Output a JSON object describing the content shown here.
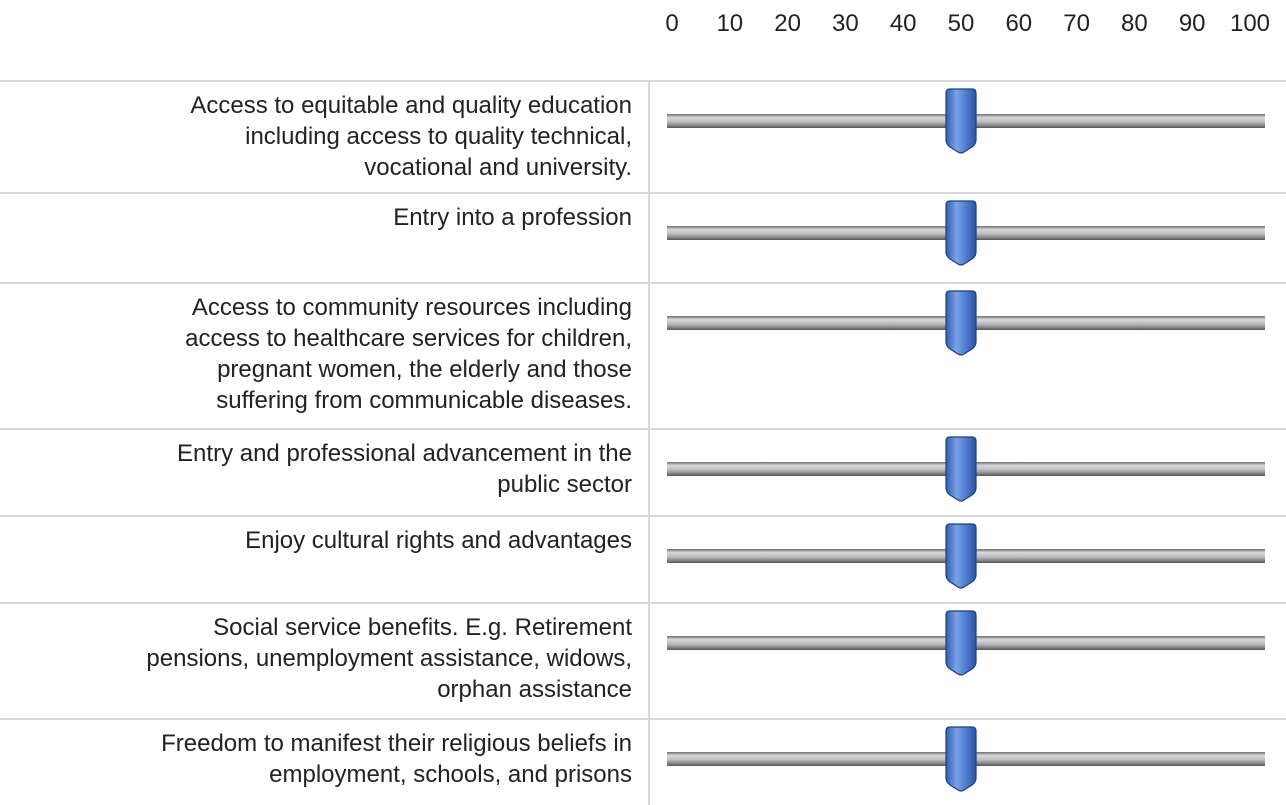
{
  "scale": {
    "ticks": [
      0,
      10,
      20,
      30,
      40,
      50,
      60,
      70,
      80,
      90,
      100
    ]
  },
  "items": [
    {
      "label_lines": [
        "Access to equitable and quality education",
        "including access to quality technical,",
        "vocational and university."
      ],
      "value": 50
    },
    {
      "label_lines": [
        "Entry into a profession"
      ],
      "value": 50
    },
    {
      "label_lines": [
        "Access to community resources including",
        "access to healthcare services for children,",
        "pregnant women, the elderly and those",
        "suffering from communicable diseases."
      ],
      "value": 50
    },
    {
      "label_lines": [
        "Entry and professional advancement in the",
        "public sector"
      ],
      "value": 50
    },
    {
      "label_lines": [
        "Enjoy cultural rights and advantages"
      ],
      "value": 50
    },
    {
      "label_lines": [
        "Social service benefits. E.g. Retirement",
        "pensions, unemployment assistance, widows,",
        "orphan assistance"
      ],
      "value": 50
    },
    {
      "label_lines": [
        "Freedom to manifest their religious beliefs in",
        "employment, schools, and prisons"
      ],
      "value": 50
    }
  ]
}
